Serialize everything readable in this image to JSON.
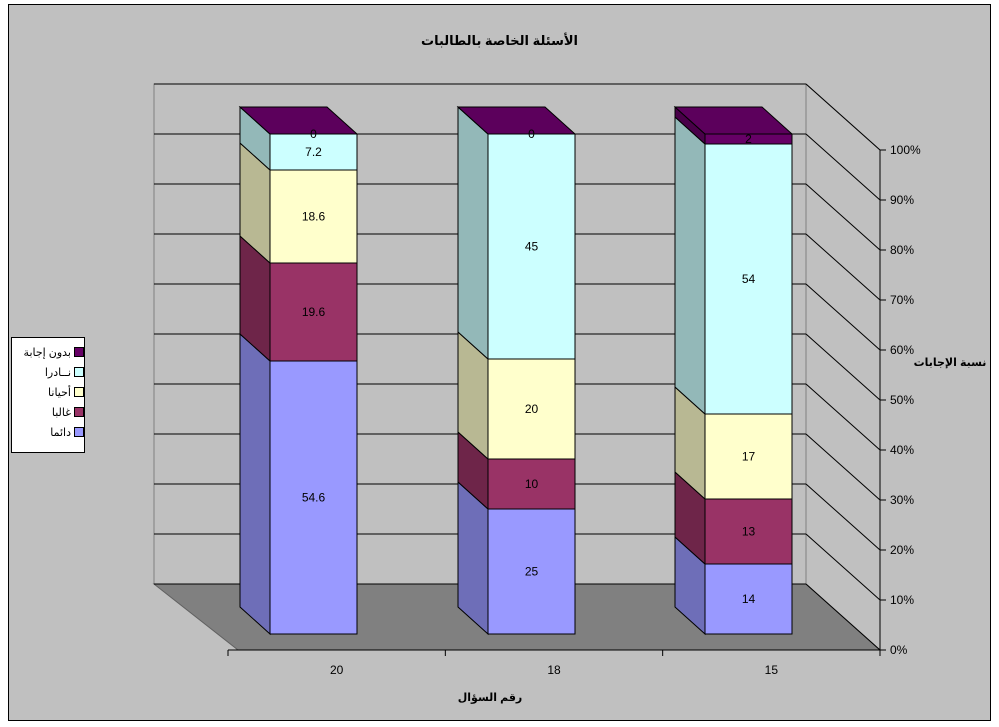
{
  "chart_data": {
    "type": "bar",
    "stacked": "percent",
    "three_d": true,
    "title": "الأسئلة الخاصة بالطالبات",
    "xlabel": "رقم السؤال",
    "ylabel": "نسبة الإجابات",
    "categories": [
      "20",
      "18",
      "15"
    ],
    "series": [
      {
        "name": "دائما",
        "values": [
          54.6,
          25,
          14
        ],
        "color": "#9999ff"
      },
      {
        "name": "غالبا",
        "values": [
          19.6,
          10,
          13
        ],
        "color": "#993366"
      },
      {
        "name": "أحيانا",
        "values": [
          18.6,
          20,
          17
        ],
        "color": "#ffffcc"
      },
      {
        "name": "نــادرا",
        "values": [
          7.2,
          45,
          54
        ],
        "color": "#ccffff"
      },
      {
        "name": "بدون إجابة",
        "values": [
          0,
          0,
          2
        ],
        "color": "#660066"
      }
    ],
    "y_ticks": [
      "0%",
      "10%",
      "20%",
      "30%",
      "40%",
      "50%",
      "60%",
      "70%",
      "80%",
      "90%",
      "100%"
    ],
    "ylim": [
      0,
      100
    ],
    "y_axis_side": "right",
    "grid": true,
    "legend_position": "left",
    "legend_order": [
      "بدون إجابة",
      "نــادرا",
      "أحيانا",
      "غالبا",
      "دائما"
    ],
    "background_color": "#c0c0c0",
    "floor_color": "#808080"
  }
}
